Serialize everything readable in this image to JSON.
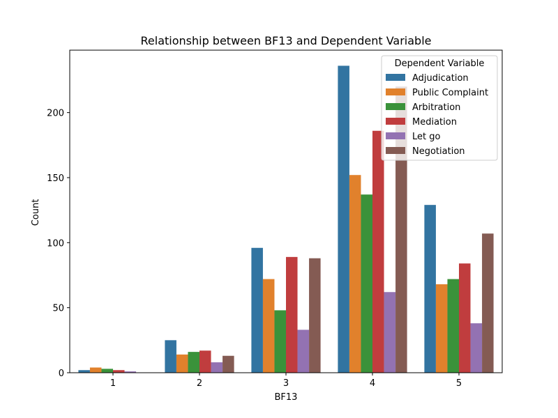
{
  "chart_data": {
    "type": "bar",
    "title": "Relationship between BF13 and Dependent Variable",
    "xlabel": "BF13",
    "ylabel": "Count",
    "categories": [
      "1",
      "2",
      "3",
      "4",
      "5"
    ],
    "ylim": [
      0,
      248
    ],
    "yticks": [
      0,
      50,
      100,
      150,
      200
    ],
    "grid": false,
    "legend": {
      "title": "Dependent Variable",
      "position": "top-right"
    },
    "series": [
      {
        "name": "Adjudication",
        "color": "#3274a1",
        "values": [
          2,
          25,
          96,
          236,
          129
        ]
      },
      {
        "name": "Public Complaint",
        "color": "#e1812c",
        "values": [
          4,
          14,
          72,
          152,
          68
        ]
      },
      {
        "name": "Arbitration",
        "color": "#3a923a",
        "values": [
          3,
          16,
          48,
          137,
          72
        ]
      },
      {
        "name": "Mediation",
        "color": "#c03d3e",
        "values": [
          2,
          17,
          89,
          186,
          84
        ]
      },
      {
        "name": "Let go",
        "color": "#9372b2",
        "values": [
          1,
          8,
          33,
          62,
          38
        ]
      },
      {
        "name": "Negotiation",
        "color": "#845b53",
        "values": [
          0,
          13,
          88,
          220,
          107
        ]
      }
    ]
  }
}
